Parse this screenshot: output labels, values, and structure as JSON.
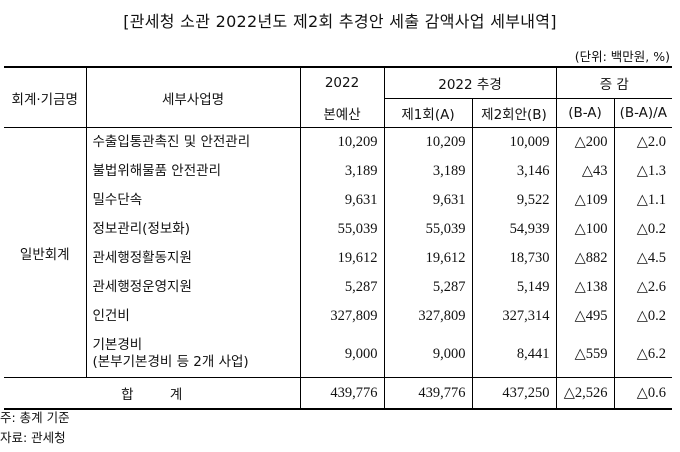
{
  "title": "[관세청 소관 2022년도 제2회 추경안 세출 감액사업 세부내역]",
  "unit": "(단위: 백만원, %)",
  "header": {
    "col_group": "회계·기금명",
    "col_project": "세부사업명",
    "col_budget_line1": "2022",
    "col_budget_line2": "본예산",
    "col_supp": "2022 추경",
    "col_supp1": "제1회(A)",
    "col_supp2": "제2회안(B)",
    "col_change": "증 감",
    "col_diff": "(B-A)",
    "col_ratio": "(B-A)/A"
  },
  "group_name": "일반회계",
  "rows": [
    {
      "name": "수출입통관촉진 및 안전관리",
      "budget": "10,209",
      "supp1": "10,209",
      "supp2": "10,009",
      "diff": "△200",
      "ratio": "△2.0"
    },
    {
      "name": "불법위해물품 안전관리",
      "budget": "3,189",
      "supp1": "3,189",
      "supp2": "3,146",
      "diff": "△43",
      "ratio": "△1.3"
    },
    {
      "name": "밀수단속",
      "budget": "9,631",
      "supp1": "9,631",
      "supp2": "9,522",
      "diff": "△109",
      "ratio": "△1.1"
    },
    {
      "name": "정보관리(정보화)",
      "budget": "55,039",
      "supp1": "55,039",
      "supp2": "54,939",
      "diff": "△100",
      "ratio": "△0.2"
    },
    {
      "name": "관세행정활동지원",
      "budget": "19,612",
      "supp1": "19,612",
      "supp2": "18,730",
      "diff": "△882",
      "ratio": "△4.5"
    },
    {
      "name": "관세행정운영지원",
      "budget": "5,287",
      "supp1": "5,287",
      "supp2": "5,149",
      "diff": "△138",
      "ratio": "△2.6"
    },
    {
      "name": "인건비",
      "budget": "327,809",
      "supp1": "327,809",
      "supp2": "327,314",
      "diff": "△495",
      "ratio": "△0.2"
    },
    {
      "name": "기본경비",
      "name2": "(본부기본경비 등 2개 사업)",
      "budget": "9,000",
      "supp1": "9,000",
      "supp2": "8,441",
      "diff": "△559",
      "ratio": "△6.2"
    }
  ],
  "total": {
    "label": "합 계",
    "budget": "439,776",
    "supp1": "439,776",
    "supp2": "437,250",
    "diff": "△2,526",
    "ratio": "△0.6"
  },
  "notes": [
    "주: 총계 기준",
    "자료: 관세청"
  ]
}
